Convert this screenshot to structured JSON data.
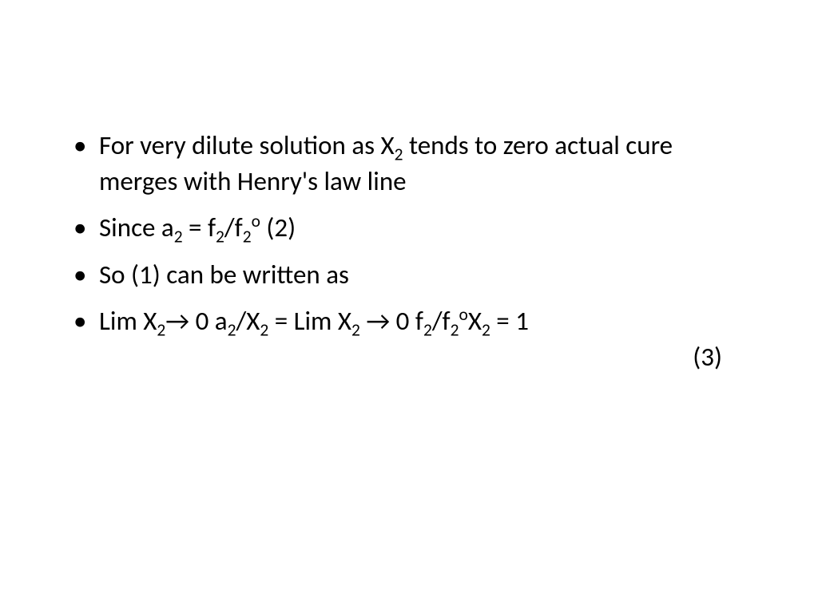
{
  "slide": {
    "background_color": "#ffffff",
    "text_color": "#000000",
    "font_family": "Calibri",
    "font_size_pt": 28,
    "bullets": [
      {
        "text_pre": "For very dilute solution as X",
        "sub1": "2",
        "text_post": " tends to zero actual cure merges with Henry's law line"
      },
      {
        "t1": "Since   a",
        "s1": "2",
        "t2": "   = f",
        "s2": "2",
        "t3": "/f",
        "s3": "2",
        "sup1": "o",
        "t4": "   (2)"
      },
      {
        "text": "So (1) can be written as"
      },
      {
        "p1": "Lim X",
        "p1s": "2",
        "p2": "→ 0   a",
        "p2s": "2",
        "p3": "/X",
        "p3s": "2",
        "p4": "   = Lim X",
        "p4s": "2",
        "p5": " →  0   f",
        "p5s": "2",
        "p6": "/f",
        "p6s": "2",
        "p6sup": "o",
        "p7": "X",
        "p7s": "2",
        "p8": "   = 1",
        "eq_num": "(3)"
      }
    ]
  }
}
